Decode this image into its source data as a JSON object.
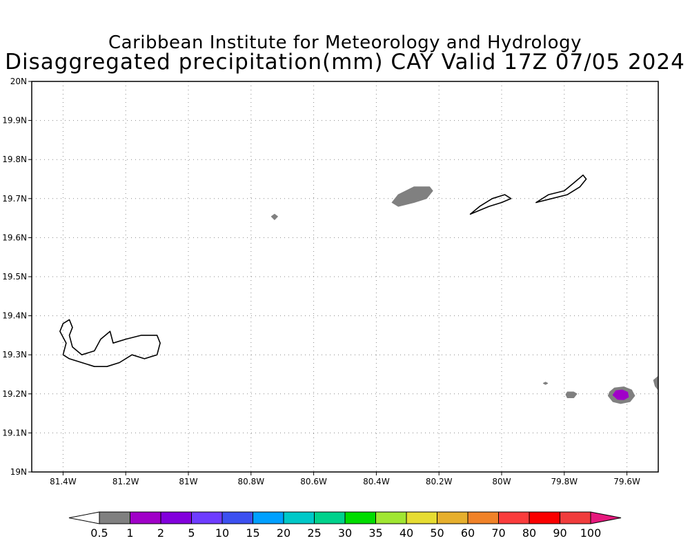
{
  "header": {
    "title_line1": "Caribbean Institute for Meteorology and Hydrology",
    "title_line2": "Disaggregated precipitation(mm) CAY Valid 17Z 07/05 2024"
  },
  "map": {
    "lon_range": [
      -81.5,
      -79.5
    ],
    "lat_range": [
      19.0,
      20.0
    ],
    "lon_ticks": [
      {
        "value": -81.4,
        "label": "81.4W"
      },
      {
        "value": -81.2,
        "label": "81.2W"
      },
      {
        "value": -81.0,
        "label": "81W"
      },
      {
        "value": -80.8,
        "label": "80.8W"
      },
      {
        "value": -80.6,
        "label": "80.6W"
      },
      {
        "value": -80.4,
        "label": "80.4W"
      },
      {
        "value": -80.2,
        "label": "80.2W"
      },
      {
        "value": -80.0,
        "label": "80W"
      },
      {
        "value": -79.8,
        "label": "79.8W"
      },
      {
        "value": -79.6,
        "label": "79.6W"
      }
    ],
    "lat_ticks": [
      {
        "value": 19.0,
        "label": "19N"
      },
      {
        "value": 19.1,
        "label": "19.1N"
      },
      {
        "value": 19.2,
        "label": "19.2N"
      },
      {
        "value": 19.3,
        "label": "19.3N"
      },
      {
        "value": 19.4,
        "label": "19.4N"
      },
      {
        "value": 19.5,
        "label": "19.5N"
      },
      {
        "value": 19.6,
        "label": "19.6N"
      },
      {
        "value": 19.7,
        "label": "19.7N"
      },
      {
        "value": 19.8,
        "label": "19.8N"
      },
      {
        "value": 19.9,
        "label": "19.9N"
      },
      {
        "value": 20.0,
        "label": "20N"
      }
    ],
    "grid": true,
    "islands": [
      {
        "name": "grand-cayman",
        "outline": [
          [
            -81.4,
            19.38
          ],
          [
            -81.38,
            19.39
          ],
          [
            -81.37,
            19.37
          ],
          [
            -81.38,
            19.35
          ],
          [
            -81.37,
            19.32
          ],
          [
            -81.34,
            19.3
          ],
          [
            -81.3,
            19.31
          ],
          [
            -81.28,
            19.34
          ],
          [
            -81.25,
            19.36
          ],
          [
            -81.24,
            19.33
          ],
          [
            -81.2,
            19.34
          ],
          [
            -81.15,
            19.35
          ],
          [
            -81.1,
            19.35
          ],
          [
            -81.09,
            19.33
          ],
          [
            -81.1,
            19.3
          ],
          [
            -81.14,
            19.29
          ],
          [
            -81.18,
            19.3
          ],
          [
            -81.22,
            19.28
          ],
          [
            -81.26,
            19.27
          ],
          [
            -81.3,
            19.27
          ],
          [
            -81.34,
            19.28
          ],
          [
            -81.38,
            19.29
          ],
          [
            -81.4,
            19.3
          ],
          [
            -81.39,
            19.33
          ],
          [
            -81.41,
            19.36
          ],
          [
            -81.4,
            19.38
          ]
        ]
      },
      {
        "name": "little-cayman",
        "outline": [
          [
            -80.1,
            19.66
          ],
          [
            -80.07,
            19.68
          ],
          [
            -80.03,
            19.7
          ],
          [
            -79.99,
            19.71
          ],
          [
            -79.97,
            19.7
          ],
          [
            -80.0,
            19.69
          ],
          [
            -80.04,
            19.68
          ],
          [
            -80.07,
            19.67
          ],
          [
            -80.1,
            19.66
          ]
        ]
      },
      {
        "name": "cayman-brac",
        "outline": [
          [
            -79.89,
            19.69
          ],
          [
            -79.85,
            19.71
          ],
          [
            -79.8,
            19.72
          ],
          [
            -79.77,
            19.74
          ],
          [
            -79.74,
            19.76
          ],
          [
            -79.73,
            19.75
          ],
          [
            -79.75,
            19.73
          ],
          [
            -79.79,
            19.71
          ],
          [
            -79.84,
            19.7
          ],
          [
            -79.89,
            19.69
          ]
        ]
      }
    ],
    "precip_areas": [
      {
        "name": "rain-area-north",
        "color": "#808080",
        "outline": [
          [
            -80.35,
            19.69
          ],
          [
            -80.33,
            19.71
          ],
          [
            -80.28,
            19.73
          ],
          [
            -80.23,
            19.73
          ],
          [
            -80.22,
            19.72
          ],
          [
            -80.24,
            19.7
          ],
          [
            -80.28,
            19.69
          ],
          [
            -80.33,
            19.68
          ],
          [
            -80.35,
            19.69
          ]
        ]
      },
      {
        "name": "rain-speck",
        "color": "#808080",
        "outline": [
          [
            -80.725,
            19.66
          ],
          [
            -80.715,
            19.654
          ],
          [
            -80.725,
            19.646
          ],
          [
            -80.735,
            19.654
          ]
        ]
      },
      {
        "name": "rain-area-east-small",
        "color": "#808080",
        "outline": [
          [
            -79.79,
            19.19
          ],
          [
            -79.77,
            19.19
          ],
          [
            -79.76,
            19.2
          ],
          [
            -79.77,
            19.205
          ],
          [
            -79.79,
            19.205
          ],
          [
            -79.795,
            19.198
          ]
        ]
      },
      {
        "name": "rain-area-east",
        "color": "#808080",
        "outline": [
          [
            -79.66,
            19.195
          ],
          [
            -79.645,
            19.18
          ],
          [
            -79.62,
            19.175
          ],
          [
            -79.59,
            19.18
          ],
          [
            -79.575,
            19.195
          ],
          [
            -79.585,
            19.21
          ],
          [
            -79.61,
            19.218
          ],
          [
            -79.64,
            19.215
          ],
          [
            -79.655,
            19.205
          ]
        ]
      },
      {
        "name": "rain-core-east",
        "color": "#a000c8",
        "outline": [
          [
            -79.645,
            19.197
          ],
          [
            -79.63,
            19.186
          ],
          [
            -79.61,
            19.185
          ],
          [
            -79.595,
            19.192
          ],
          [
            -79.598,
            19.204
          ],
          [
            -79.615,
            19.21
          ],
          [
            -79.635,
            19.208
          ]
        ]
      },
      {
        "name": "rain-area-edge",
        "color": "#808080",
        "outline": [
          [
            -79.5,
            19.21
          ],
          [
            -79.51,
            19.22
          ],
          [
            -79.515,
            19.235
          ],
          [
            -79.5,
            19.245
          ]
        ]
      },
      {
        "name": "rain-speck-2",
        "color": "#808080",
        "outline": [
          [
            -79.86,
            19.23
          ],
          [
            -79.853,
            19.227
          ],
          [
            -79.86,
            19.224
          ],
          [
            -79.867,
            19.227
          ]
        ]
      }
    ]
  },
  "colorbar": {
    "under_color": "#ffffff",
    "over_color": "#e6197d",
    "colors": [
      "#808080",
      "#a000c8",
      "#8200dc",
      "#6e3cff",
      "#3c50f0",
      "#00a0ff",
      "#00c8c8",
      "#00d28c",
      "#00dc00",
      "#a0e632",
      "#e6dc32",
      "#e6af2d",
      "#f08228",
      "#fa3c3c",
      "#fa0000",
      "#f03c3c"
    ],
    "labels": [
      "0.5",
      "1",
      "2",
      "5",
      "10",
      "15",
      "20",
      "25",
      "30",
      "35",
      "40",
      "50",
      "60",
      "70",
      "80",
      "90",
      "100"
    ]
  }
}
